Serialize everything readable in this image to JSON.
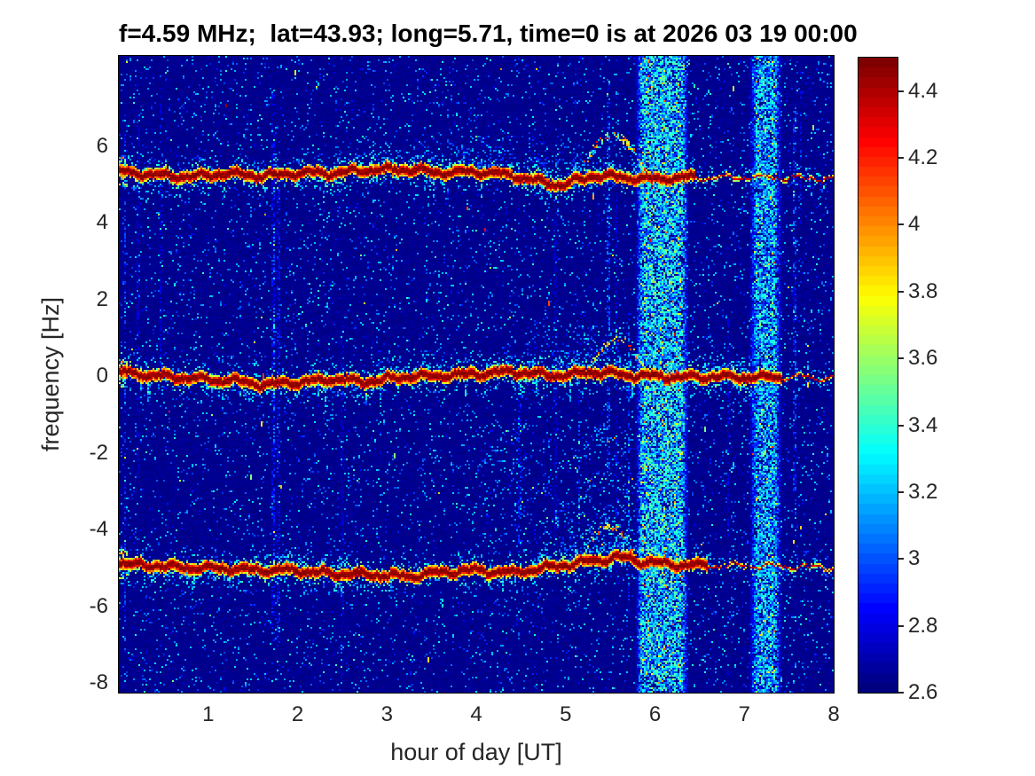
{
  "figure": {
    "title": "f=4.59 MHz;  lat=43.93; long=5.71, time=0 is at 2026 03 19 00:00",
    "xlabel": "hour of day [UT]",
    "ylabel": "frequency [Hz]"
  },
  "chart_data": {
    "type": "heatmap",
    "subtype": "doppler-spectrogram",
    "title": "f=4.59 MHz;  lat=43.93; long=5.71, time=0 is at 2026 03 19 00:00",
    "xlabel": "hour of day [UT]",
    "ylabel": "frequency [Hz]",
    "xlim": [
      0,
      8
    ],
    "ylim": [
      -8.25,
      8.35
    ],
    "xticks": [
      1,
      2,
      3,
      4,
      5,
      6,
      7,
      8
    ],
    "yticks": [
      6,
      4,
      2,
      0,
      -2,
      -4,
      -6,
      -8
    ],
    "grid": false,
    "colormap": "jet",
    "colorbar": {
      "min": 2.6,
      "max": 4.5,
      "ticks": [
        4.4,
        4.2,
        4,
        3.8,
        3.6,
        3.4,
        3.2,
        3,
        2.8,
        2.6
      ],
      "position": "right"
    },
    "background_level_db": 2.62,
    "seed": 20260319,
    "thin_streak_count": 16,
    "bright_speck_count": 28,
    "spectral_lines": [
      {
        "name": "upper-doppler-line",
        "mean_freq_hz": 5.2,
        "peak_value": 4.5,
        "thin_after_hour": 6.45,
        "path": [
          [
            0,
            5.35
          ],
          [
            0.4,
            5.24
          ],
          [
            0.8,
            5.2
          ],
          [
            1.2,
            5.28
          ],
          [
            1.6,
            5.22
          ],
          [
            2.0,
            5.3
          ],
          [
            2.4,
            5.3
          ],
          [
            2.8,
            5.38
          ],
          [
            3.2,
            5.4
          ],
          [
            3.6,
            5.3
          ],
          [
            4.0,
            5.34
          ],
          [
            4.4,
            5.24
          ],
          [
            4.7,
            5.06
          ],
          [
            5.0,
            5.0
          ],
          [
            5.3,
            5.22
          ],
          [
            5.6,
            5.2
          ],
          [
            5.9,
            5.14
          ],
          [
            6.3,
            5.18
          ],
          [
            6.7,
            5.16
          ],
          [
            7.2,
            5.18
          ],
          [
            7.6,
            5.16
          ],
          [
            8,
            5.14
          ]
        ],
        "fringe": {
          "dense_above": [
            [
              2.4,
              5.9
            ],
            [
              7.4,
              8.0
            ]
          ],
          "dense_below": [
            [
              4.5,
              5.3
            ]
          ],
          "streak_below": [
            [
              0.3,
              3.5
            ]
          ]
        }
      },
      {
        "name": "center-doppler-line",
        "mean_freq_hz": 0.0,
        "peak_value": 4.5,
        "thin_after_hour": 7.42,
        "path": [
          [
            0,
            0.1
          ],
          [
            0.4,
            0.02
          ],
          [
            0.8,
            -0.06
          ],
          [
            1.2,
            -0.1
          ],
          [
            1.6,
            -0.22
          ],
          [
            2.0,
            -0.16
          ],
          [
            2.4,
            -0.08
          ],
          [
            2.8,
            -0.14
          ],
          [
            3.2,
            -0.02
          ],
          [
            3.6,
            0.02
          ],
          [
            4.0,
            0.06
          ],
          [
            4.4,
            0.12
          ],
          [
            4.7,
            0.05
          ],
          [
            5.0,
            0.02
          ],
          [
            5.3,
            0.12
          ],
          [
            5.6,
            0.05
          ],
          [
            5.9,
            0.0
          ],
          [
            6.3,
            -0.02
          ],
          [
            6.7,
            -0.02
          ],
          [
            7.2,
            -0.03
          ],
          [
            7.6,
            -0.03
          ],
          [
            8,
            -0.05
          ]
        ],
        "fringe": {
          "dense_above": [
            [
              2.8,
              5.9
            ],
            [
              6.35,
              7.35
            ]
          ],
          "dense_below": [
            [
              4.3,
              5.0
            ],
            [
              6.35,
              7.35
            ]
          ],
          "streak_below": [
            [
              0.3,
              2.8
            ]
          ]
        }
      },
      {
        "name": "lower-doppler-line",
        "mean_freq_hz": -5.0,
        "peak_value": 4.5,
        "thin_after_hour": 6.6,
        "path": [
          [
            0,
            -4.88
          ],
          [
            0.4,
            -4.95
          ],
          [
            0.8,
            -5.0
          ],
          [
            1.2,
            -5.02
          ],
          [
            1.6,
            -5.05
          ],
          [
            2.0,
            -5.08
          ],
          [
            2.4,
            -5.15
          ],
          [
            2.8,
            -5.18
          ],
          [
            3.2,
            -5.22
          ],
          [
            3.6,
            -5.12
          ],
          [
            4.0,
            -5.06
          ],
          [
            4.4,
            -5.12
          ],
          [
            4.7,
            -5.02
          ],
          [
            5.0,
            -4.92
          ],
          [
            5.3,
            -4.82
          ],
          [
            5.6,
            -4.72
          ],
          [
            5.9,
            -4.85
          ],
          [
            6.3,
            -4.92
          ],
          [
            6.7,
            -4.95
          ],
          [
            7.2,
            -4.95
          ],
          [
            7.6,
            -4.97
          ],
          [
            8,
            -5.0
          ]
        ],
        "fringe": {
          "dense_above": [
            [
              4.6,
              5.85
            ],
            [
              1.5,
              2.6
            ]
          ],
          "dense_below": [
            [
              0.3,
              1.3
            ]
          ],
          "streak_below": [
            [
              0.5,
              3.0
            ]
          ]
        }
      }
    ],
    "interference_bands": [
      {
        "name": "wideband-noise-1",
        "hour_start": 5.78,
        "hour_end": 6.38,
        "level": 3.35
      },
      {
        "name": "wideband-noise-2",
        "hour_start": 7.06,
        "hour_end": 7.42,
        "level": 3.28
      }
    ],
    "arc_echoes": [
      {
        "line": 0,
        "hour_start": 5.12,
        "hour_end": 5.95,
        "rise_hz": 1.05
      },
      {
        "line": 1,
        "hour_start": 5.25,
        "hour_end": 5.92,
        "rise_hz": 0.9
      },
      {
        "line": 2,
        "hour_start": 5.15,
        "hour_end": 5.8,
        "rise_hz": 0.85
      }
    ],
    "diffuse_patches": [
      {
        "name": "ripple-patch",
        "hours": [
          4.0,
          5.75
        ],
        "freqs": [
          -4.35,
          -1.3
        ],
        "prob": 0.13,
        "amp": 0.45,
        "diag": true
      },
      {
        "name": "pre-arc-haze-mid",
        "hours": [
          4.55,
          5.6
        ],
        "freqs": [
          0.2,
          1.3
        ],
        "prob": 0.1,
        "amp": 0.4,
        "diag": false
      },
      {
        "name": "pre-arc-haze-upper",
        "hours": [
          3.3,
          5.2
        ],
        "freqs": [
          5.5,
          6.25
        ],
        "prob": 0.08,
        "amp": 0.38,
        "diag": false
      },
      {
        "name": "pre-arc-haze-lower",
        "hours": [
          5.0,
          5.9
        ],
        "freqs": [
          -4.6,
          -3.6
        ],
        "prob": 0.12,
        "amp": 0.45,
        "diag": false
      }
    ]
  }
}
